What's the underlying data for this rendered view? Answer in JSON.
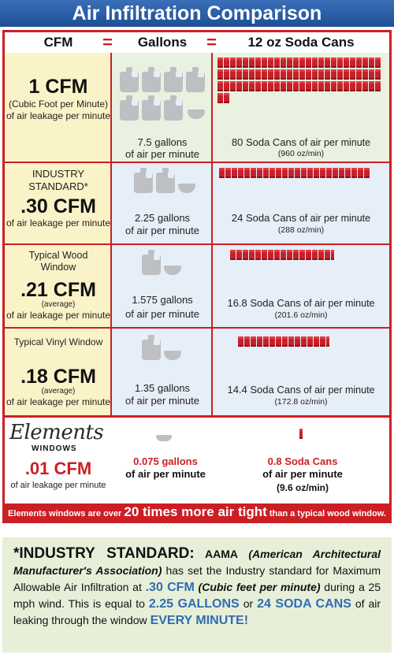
{
  "title": "Air Infiltration Comparison",
  "headers": {
    "cfm": "CFM",
    "eq1": "=",
    "gallons": "Gallons",
    "eq2": "=",
    "cans": "12 oz Soda Cans"
  },
  "rows": [
    {
      "label_top": "",
      "cfm": "1 CFM",
      "sub": "(Cubic Foot per Minute)",
      "leak": "of air leakage per minute",
      "gallons": "7.5 gallons",
      "gallons_sub": "of air per minute",
      "cans_main": "80 Soda Cans",
      "cans_tail": "of air per minute",
      "cans_oz": "(960 oz/min)",
      "jugs": 7.5,
      "can_count": 80
    },
    {
      "label_top": "INDUSTRY STANDARD*",
      "cfm": ".30 CFM",
      "sub": "",
      "leak": "of air leakage per minute",
      "gallons": "2.25 gallons",
      "gallons_sub": "of air per minute",
      "cans_main": "24 Soda Cans",
      "cans_tail": "of air per minute",
      "cans_oz": "(288 oz/min)",
      "jugs": 2.25,
      "can_count": 24
    },
    {
      "label_top": "Typical Wood Window",
      "cfm": ".21 CFM",
      "sub": "(average)",
      "leak": "of air leakage per minute",
      "gallons": "1.575 gallons",
      "gallons_sub": "of air per minute",
      "cans_main": "16.8 Soda Cans",
      "cans_tail": "of air per minute",
      "cans_oz": "(201.6 oz/min)",
      "jugs": 1.575,
      "can_count": 16.8
    },
    {
      "label_top": "Typical Vinyl Window",
      "cfm": ".18 CFM",
      "sub": "(average)",
      "leak": "of air leakage per minute",
      "gallons": "1.35 gallons",
      "gallons_sub": "of air per minute",
      "cans_main": "14.4 Soda Cans",
      "cans_tail": "of air per minute",
      "cans_oz": "(172.8 oz/min)",
      "jugs": 1.35,
      "can_count": 14.4
    }
  ],
  "elements": {
    "logo": "Elements",
    "logo_sub": "WINDOWS",
    "cfm": ".01 CFM",
    "leak": "of air leakage per minute",
    "gallons": "0.075 gallons",
    "gallons_sub": "of air per minute",
    "cans": "0.8 Soda Cans",
    "cans_sub": "of air per minute",
    "cans_oz": "(9.6 oz/min)"
  },
  "strip": {
    "pre": "Elements windows are over",
    "big": "20 times more air tight",
    "post": "than a typical wood window."
  },
  "note": {
    "head": "*INDUSTRY STANDARD:",
    "aama": "AAMA",
    "aama_full": "(American Architectural Manufacturer's Association)",
    "t1": "has set the Industry standard for Maximum Allowable Air Infiltration at",
    "cfm": ".30 CFM",
    "cfm_paren": "(Cubic feet per minute)",
    "t2": "during a 25 mph wind. This is equal to",
    "gal": "2.25 GALLONS",
    "or": "or",
    "cans": "24 SODA CANS",
    "t3": "of air leaking through the window",
    "every": "EVERY MINUTE!"
  }
}
